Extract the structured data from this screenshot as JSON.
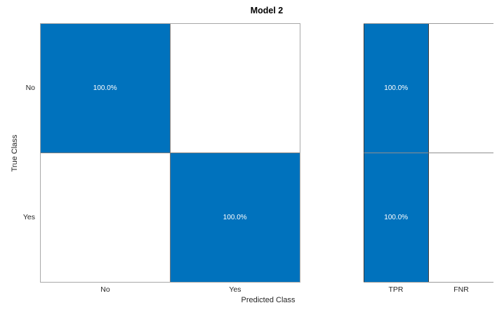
{
  "title": "Model 2",
  "colors": {
    "cell_fill_blue": "#0072BD",
    "cell_text_white": "#ffffff",
    "axis_text": "#262626",
    "grid_gray": "#8f8f8f"
  },
  "chart_data": {
    "type": "heatmap",
    "subtype": "confusion-matrix",
    "title": "Model 2",
    "xlabel": "Predicted Class",
    "ylabel": "True Class",
    "classes": [
      "No",
      "Yes"
    ],
    "x_ticks": [
      "No",
      "Yes"
    ],
    "y_ticks": [
      "No",
      "Yes"
    ],
    "matrix_percent": [
      [
        100.0,
        0.0
      ],
      [
        0.0,
        100.0
      ]
    ],
    "cells": [
      {
        "row": "No",
        "col": "No",
        "label": "100.0%",
        "filled": true
      },
      {
        "row": "No",
        "col": "Yes",
        "label": "",
        "filled": false
      },
      {
        "row": "Yes",
        "col": "No",
        "label": "",
        "filled": false
      },
      {
        "row": "Yes",
        "col": "Yes",
        "label": "100.0%",
        "filled": true
      }
    ],
    "row_summary": {
      "columns": [
        "TPR",
        "FNR"
      ],
      "cells": [
        {
          "row": "No",
          "col": "TPR",
          "label": "100.0%",
          "filled": true
        },
        {
          "row": "No",
          "col": "FNR",
          "label": "",
          "filled": false
        },
        {
          "row": "Yes",
          "col": "TPR",
          "label": "100.0%",
          "filled": true
        },
        {
          "row": "Yes",
          "col": "FNR",
          "label": "",
          "filled": false
        }
      ],
      "values_percent": {
        "TPR": [
          100.0,
          100.0
        ],
        "FNR": [
          0.0,
          0.0
        ]
      }
    },
    "legend": "none",
    "grid": true
  }
}
